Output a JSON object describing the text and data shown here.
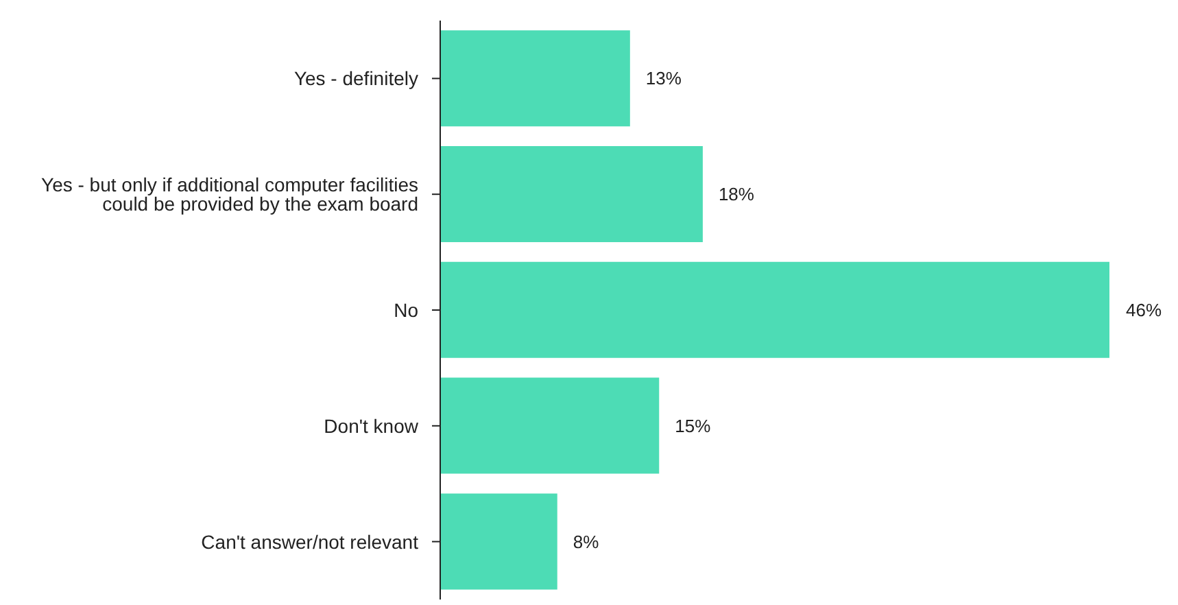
{
  "chart_data": {
    "type": "bar",
    "orientation": "horizontal",
    "categories": [
      "Yes - definitely",
      "Yes - but only if additional computer facilities could be provided by the exam board",
      "No",
      "Don't know",
      "Can't answer/not relevant"
    ],
    "values": [
      13,
      18,
      46,
      15,
      8
    ],
    "value_labels": [
      "13%",
      "18%",
      "46%",
      "15%",
      "8%"
    ],
    "color": "#4ddcb5",
    "grid": false,
    "legend": false
  }
}
